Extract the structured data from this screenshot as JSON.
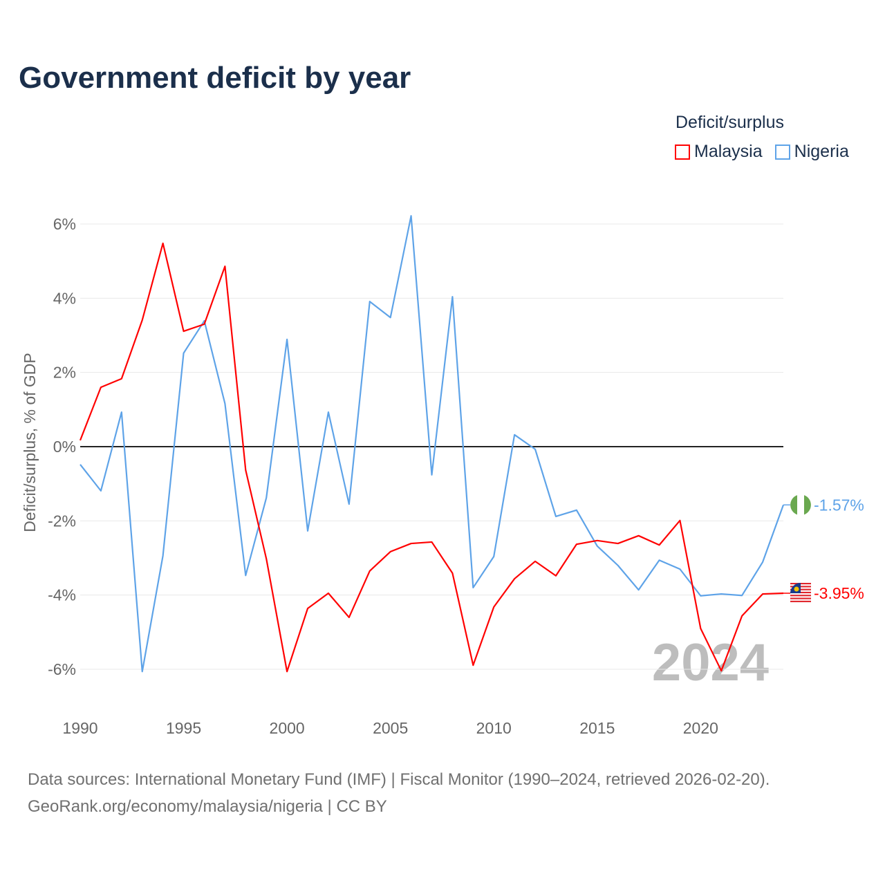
{
  "title": "Government deficit by year",
  "legend": {
    "title": "Deficit/surplus"
  },
  "source": {
    "line1": "Data sources: International Monetary Fund (IMF) | Fiscal Monitor (1990–2024, retrieved 2026-02-20).",
    "line2": "GeoRank.org/economy/malaysia/nigeria | CC BY"
  },
  "chart_data": {
    "type": "line",
    "title": "Government deficit by year",
    "xlabel": "",
    "ylabel": "Deficit/surplus, % of GDP",
    "xlim": [
      1990,
      2024
    ],
    "ylim": [
      -7,
      7
    ],
    "x_ticks": [
      1990,
      1995,
      2000,
      2005,
      2010,
      2015,
      2020
    ],
    "x_tick_labels": [
      "1990",
      "1995",
      "2000",
      "2005",
      "2010",
      "2015",
      "2020"
    ],
    "y_ticks": [
      -6,
      -4,
      -2,
      0,
      2,
      4,
      6
    ],
    "y_tick_labels": [
      "-6%",
      "-4%",
      "-2%",
      "0%",
      "2%",
      "4%",
      "6%"
    ],
    "grid": true,
    "legend_position": "top-right",
    "watermark_year": "2024",
    "x": [
      1990,
      1991,
      1992,
      1993,
      1994,
      1995,
      1996,
      1997,
      1998,
      1999,
      2000,
      2001,
      2002,
      2003,
      2004,
      2005,
      2006,
      2007,
      2008,
      2009,
      2010,
      2011,
      2012,
      2013,
      2014,
      2015,
      2016,
      2017,
      2018,
      2019,
      2020,
      2021,
      2022,
      2023,
      2024
    ],
    "series": [
      {
        "name": "Malaysia",
        "color": "#ff0000",
        "end_label": "-3.95%",
        "values": [
          0.17,
          1.6,
          1.83,
          3.41,
          5.48,
          3.11,
          3.3,
          4.86,
          -0.63,
          -3.02,
          -6.06,
          -4.36,
          -3.95,
          -4.6,
          -3.35,
          -2.83,
          -2.61,
          -2.57,
          -3.41,
          -5.89,
          -4.32,
          -3.56,
          -3.09,
          -3.48,
          -2.63,
          -2.53,
          -2.61,
          -2.4,
          -2.65,
          -1.99,
          -4.9,
          -6.04,
          -4.56,
          -3.97,
          -3.95
        ]
      },
      {
        "name": "Nigeria",
        "color": "#5ea3e8",
        "end_label": "-1.57%",
        "values": [
          -0.48,
          -1.19,
          0.93,
          -6.06,
          -2.94,
          2.52,
          3.39,
          1.16,
          -3.47,
          -1.38,
          2.89,
          -2.27,
          0.93,
          -1.55,
          3.91,
          3.48,
          6.22,
          -0.76,
          4.04,
          -3.8,
          -2.96,
          0.32,
          -0.07,
          -1.88,
          -1.71,
          -2.68,
          -3.2,
          -3.86,
          -3.06,
          -3.3,
          -4.02,
          -3.97,
          -4.01,
          -3.11,
          -1.57
        ]
      }
    ]
  }
}
